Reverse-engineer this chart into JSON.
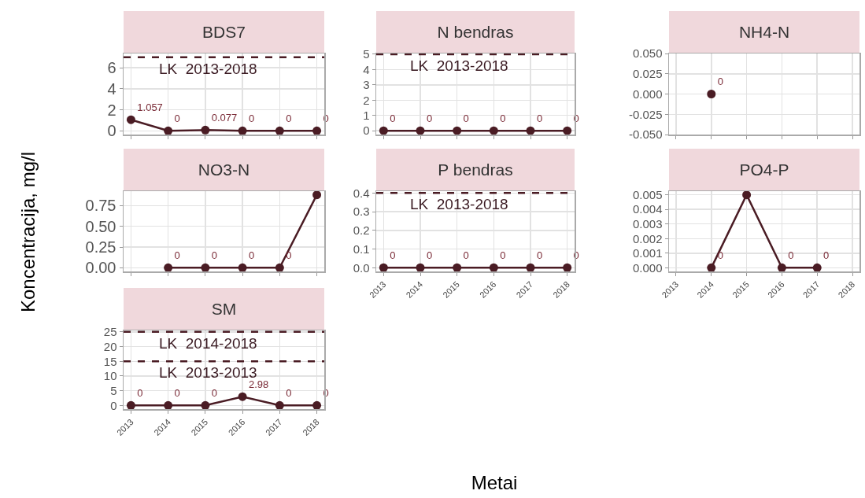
{
  "chart_data": [
    {
      "type": "line",
      "title": "BDS7",
      "ylabel": "Koncentracija, mg/l",
      "x": [
        2013,
        2014,
        2015,
        2016,
        2017,
        2018
      ],
      "series": [
        {
          "color": "#4a1c24",
          "values": [
            1.057,
            0,
            0.077,
            0,
            0,
            0
          ],
          "value_labels": [
            "1.057",
            "0",
            "0.077",
            "0",
            "0",
            "0"
          ]
        }
      ],
      "xlim": [
        2012.8,
        2018.2
      ],
      "xticks": [
        2013,
        2014,
        2015,
        2016,
        2017,
        2018
      ],
      "ylim": [
        -0.35,
        7.35
      ],
      "yticks": [
        0,
        2,
        4,
        6
      ],
      "ref_lines": [
        {
          "axis": "y",
          "value": 7,
          "label": "LK  2013-2018",
          "color": "#4a1c24",
          "line_style": "dashed"
        }
      ],
      "grid": true,
      "marker": "circle",
      "tick_labels": "y"
    },
    {
      "type": "line",
      "title": "N bendras",
      "x": [
        2013,
        2014,
        2015,
        2016,
        2017,
        2018
      ],
      "series": [
        {
          "color": "#4a1c24",
          "values": [
            0,
            0,
            0,
            0,
            0,
            0
          ],
          "value_labels": [
            "0",
            "0",
            "0",
            "0",
            "0",
            "0"
          ]
        }
      ],
      "xlim": [
        2012.8,
        2018.2
      ],
      "xticks": [
        2013,
        2014,
        2015,
        2016,
        2017,
        2018
      ],
      "ylim": [
        -0.25,
        5.05
      ],
      "yticks": [
        0,
        1,
        2,
        3,
        4,
        5
      ],
      "ref_lines": [
        {
          "axis": "y",
          "value": 5,
          "label": "LK  2013-2018",
          "color": "#4a1c24",
          "line_style": "dashed"
        }
      ],
      "grid": true,
      "marker": "circle",
      "tick_labels": "y"
    },
    {
      "type": "line",
      "title": "NH4-N",
      "x": [
        2014
      ],
      "series": [
        {
          "color": "#4a1c24",
          "values": [
            0
          ],
          "value_labels": [
            "0"
          ]
        }
      ],
      "xlim": [
        2012.8,
        2018.2
      ],
      "xticks": [
        2013,
        2014,
        2015,
        2016,
        2017,
        2018
      ],
      "ylim": [
        -0.05,
        0.05
      ],
      "yticks": [
        {
          "value": -0.05,
          "label": "-0.050"
        },
        {
          "value": -0.025,
          "label": "-0.025"
        },
        {
          "value": 0,
          "label": "0.000"
        },
        {
          "value": 0.025,
          "label": "0.025"
        },
        {
          "value": 0.05,
          "label": "0.050"
        }
      ],
      "grid": true,
      "marker": "circle",
      "tick_labels": "y"
    },
    {
      "type": "line",
      "title": "NO3-N",
      "x": [
        2014,
        2015,
        2016,
        2017,
        2018
      ],
      "series": [
        {
          "color": "#4a1c24",
          "values": [
            0,
            0,
            0,
            0,
            0.88
          ],
          "value_labels": [
            "0",
            "0",
            "0",
            "0",
            null
          ]
        }
      ],
      "xlim": [
        2012.8,
        2018.2
      ],
      "xticks": [
        2013,
        2014,
        2015,
        2016,
        2017,
        2018
      ],
      "ylim": [
        -0.044,
        0.924
      ],
      "yticks": [
        {
          "value": 0,
          "label": "0.00"
        },
        {
          "value": 0.25,
          "label": "0.25"
        },
        {
          "value": 0.5,
          "label": "0.50"
        },
        {
          "value": 0.75,
          "label": "0.75"
        }
      ],
      "grid": true,
      "marker": "circle",
      "tick_labels": "y"
    },
    {
      "type": "line",
      "title": "P bendras",
      "xlabel": "Metai",
      "x": [
        2013,
        2014,
        2015,
        2016,
        2017,
        2018
      ],
      "series": [
        {
          "color": "#4a1c24",
          "values": [
            0,
            0,
            0,
            0,
            0,
            0
          ],
          "value_labels": [
            "0",
            "0",
            "0",
            "0",
            "0",
            "0"
          ]
        }
      ],
      "xlim": [
        2012.8,
        2018.2
      ],
      "xticks": [
        2013,
        2014,
        2015,
        2016,
        2017,
        2018
      ],
      "ylim": [
        -0.02,
        0.41
      ],
      "yticks": [
        {
          "value": 0,
          "label": "0.0"
        },
        {
          "value": 0.1,
          "label": "0.1"
        },
        {
          "value": 0.2,
          "label": "0.2"
        },
        {
          "value": 0.3,
          "label": "0.3"
        },
        {
          "value": 0.4,
          "label": "0.4"
        }
      ],
      "ref_lines": [
        {
          "axis": "y",
          "value": 0.4,
          "label": "LK  2013-2018",
          "color": "#4a1c24",
          "line_style": "dashed"
        }
      ],
      "grid": true,
      "marker": "circle"
    },
    {
      "type": "line",
      "title": "PO4-P",
      "x": [
        2014,
        2015,
        2016,
        2017
      ],
      "series": [
        {
          "color": "#4a1c24",
          "values": [
            0,
            0.005,
            0,
            0
          ],
          "value_labels": [
            "0",
            null,
            "0",
            "0"
          ]
        }
      ],
      "xlim": [
        2012.8,
        2018.2
      ],
      "xticks": [
        2013,
        2014,
        2015,
        2016,
        2017,
        2018
      ],
      "ylim": [
        -0.00025,
        0.00525
      ],
      "yticks": [
        {
          "value": 0,
          "label": "0.000"
        },
        {
          "value": 0.001,
          "label": "0.001"
        },
        {
          "value": 0.002,
          "label": "0.002"
        },
        {
          "value": 0.003,
          "label": "0.003"
        },
        {
          "value": 0.004,
          "label": "0.004"
        },
        {
          "value": 0.005,
          "label": "0.005"
        }
      ],
      "grid": true,
      "marker": "circle"
    },
    {
      "type": "line",
      "title": "SM",
      "x": [
        2013,
        2014,
        2015,
        2016,
        2017,
        2018
      ],
      "series": [
        {
          "color": "#4a1c24",
          "values": [
            0,
            0,
            0,
            2.98,
            0,
            0
          ],
          "value_labels": [
            "0",
            "0",
            "0",
            "2.98",
            "0",
            "0"
          ]
        }
      ],
      "xlim": [
        2012.8,
        2018.2
      ],
      "xticks": [
        2013,
        2014,
        2015,
        2016,
        2017,
        2018
      ],
      "ylim": [
        -1.25,
        25.5
      ],
      "yticks": [
        0,
        5,
        10,
        15,
        20,
        25
      ],
      "ref_lines": [
        {
          "axis": "y",
          "value": 25,
          "label": "LK  2014-2018",
          "color": "#4a1c24",
          "line_style": "dashed"
        },
        {
          "axis": "y",
          "value": 15,
          "label": "LK  2013-2013",
          "color": "#4a1c24",
          "line_style": "dashed"
        }
      ],
      "grid": true,
      "marker": "circle"
    }
  ]
}
